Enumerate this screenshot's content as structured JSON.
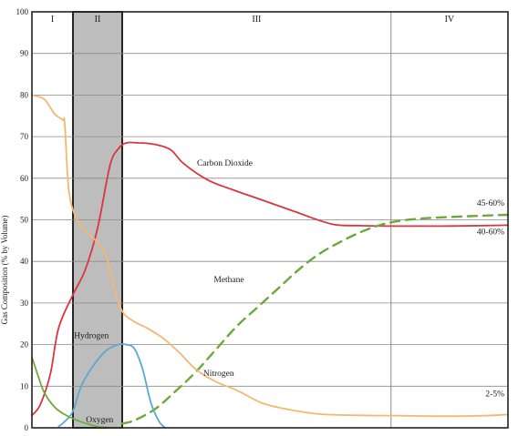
{
  "chart_data": {
    "type": "line",
    "ylabel": "Gas Composition (% by Volume)",
    "xlabel": "",
    "ylim": [
      0,
      100
    ],
    "yticks": [
      0,
      10,
      20,
      30,
      40,
      50,
      60,
      70,
      80,
      90,
      100
    ],
    "grid": "horizontal",
    "legend": "none",
    "phases": [
      {
        "label": "I",
        "start": 0,
        "end": 1,
        "shaded": false
      },
      {
        "label": "II",
        "start": 1,
        "end": 2.2,
        "shaded": true
      },
      {
        "label": "III",
        "start": 2.2,
        "end": 8.75,
        "shaded": false
      },
      {
        "label": "IV",
        "start": 8.75,
        "end": 11.6,
        "shaded": false
      }
    ],
    "x_domain": [
      0,
      11.6
    ],
    "series": [
      {
        "name": "Carbon Dioxide",
        "color": "#d9363e",
        "style": "solid",
        "x": [
          0,
          0.2,
          0.45,
          0.65,
          1.0,
          1.3,
          1.6,
          1.9,
          2.1,
          2.3,
          2.6,
          2.8,
          3.1,
          3.4,
          3.7,
          4.3,
          4.9,
          5.6,
          6.4,
          7.3,
          8.0,
          8.9,
          10.0,
          11.0,
          11.6
        ],
        "y": [
          3,
          5.5,
          13,
          24,
          32,
          38,
          48,
          63,
          67,
          68.5,
          68.5,
          68.4,
          67.9,
          66.7,
          63.5,
          59.5,
          57.2,
          54.8,
          52,
          49,
          48.6,
          48.5,
          48.5,
          48.6,
          48.7
        ],
        "end_label": "40-60%"
      },
      {
        "name": "Methane",
        "color": "#6aaa3c",
        "style": "dashed",
        "x": [
          2.2,
          2.5,
          3.0,
          3.5,
          4.0,
          4.5,
          5.0,
          5.5,
          6.0,
          6.5,
          7.0,
          7.5,
          8.0,
          8.5,
          9.0,
          9.5,
          10.0,
          10.5,
          11.0,
          11.6
        ],
        "y": [
          1,
          1.8,
          4.5,
          8.8,
          13.5,
          19,
          24.5,
          29,
          33.5,
          38,
          41.8,
          44.6,
          47,
          48.8,
          49.8,
          50.3,
          50.6,
          50.8,
          51,
          51.2
        ],
        "end_label": "45-60%"
      },
      {
        "name": "Nitrogen",
        "color": "#f4b870",
        "style": "solid",
        "x": [
          0,
          0.3,
          0.55,
          0.75,
          0.8,
          0.9,
          1.1,
          1.4,
          1.7,
          1.85,
          2.0,
          2.2,
          2.5,
          2.8,
          3.2,
          3.6,
          4.0,
          4.5,
          5.0,
          5.6,
          6.2,
          7.0,
          8.0,
          9.0,
          10.0,
          11.0,
          11.6
        ],
        "y": [
          80,
          79,
          75.5,
          74,
          73,
          57,
          50,
          46.5,
          43.5,
          40,
          34,
          28,
          25.5,
          24,
          21.5,
          18,
          14,
          11,
          9,
          6,
          4.5,
          3.3,
          3,
          2.9,
          2.8,
          2.9,
          3.2
        ],
        "end_label": "2-5%"
      },
      {
        "name": "Hydrogen",
        "color": "#5ba9cf",
        "style": "solid",
        "x": [
          0.65,
          0.8,
          1.0,
          1.2,
          1.5,
          1.8,
          2.1,
          2.3,
          2.5,
          2.7,
          2.9,
          3.1,
          3.25
        ],
        "y": [
          0.3,
          1.5,
          4,
          10,
          15,
          18.5,
          20,
          20,
          19,
          14,
          6,
          1.5,
          0
        ],
        "end_label": ""
      },
      {
        "name": "Oxygen",
        "color": "#6aaa3c",
        "style": "solid",
        "x": [
          0,
          0.15,
          0.3,
          0.55,
          0.8,
          1.1,
          1.4,
          1.6,
          1.8,
          2.0,
          2.2
        ],
        "y": [
          17,
          12.5,
          8.5,
          5,
          3.2,
          1.8,
          0.8,
          0.3,
          0.1,
          0,
          0
        ],
        "end_label": ""
      }
    ],
    "annotations": [
      {
        "text": "Carbon Dioxide",
        "series": "Carbon Dioxide",
        "x": 4.7,
        "y": 63
      },
      {
        "text": "Methane",
        "series": "Methane",
        "x": 4.8,
        "y": 35
      },
      {
        "text": "Nitrogen",
        "series": "Nitrogen",
        "x": 4.55,
        "y": 12.5
      },
      {
        "text": "Hydrogen",
        "series": "Hydrogen",
        "x": 1.45,
        "y": 21.5
      },
      {
        "text": "Oxygen",
        "series": "Oxygen",
        "x": 1.65,
        "y": 1.3
      }
    ]
  }
}
